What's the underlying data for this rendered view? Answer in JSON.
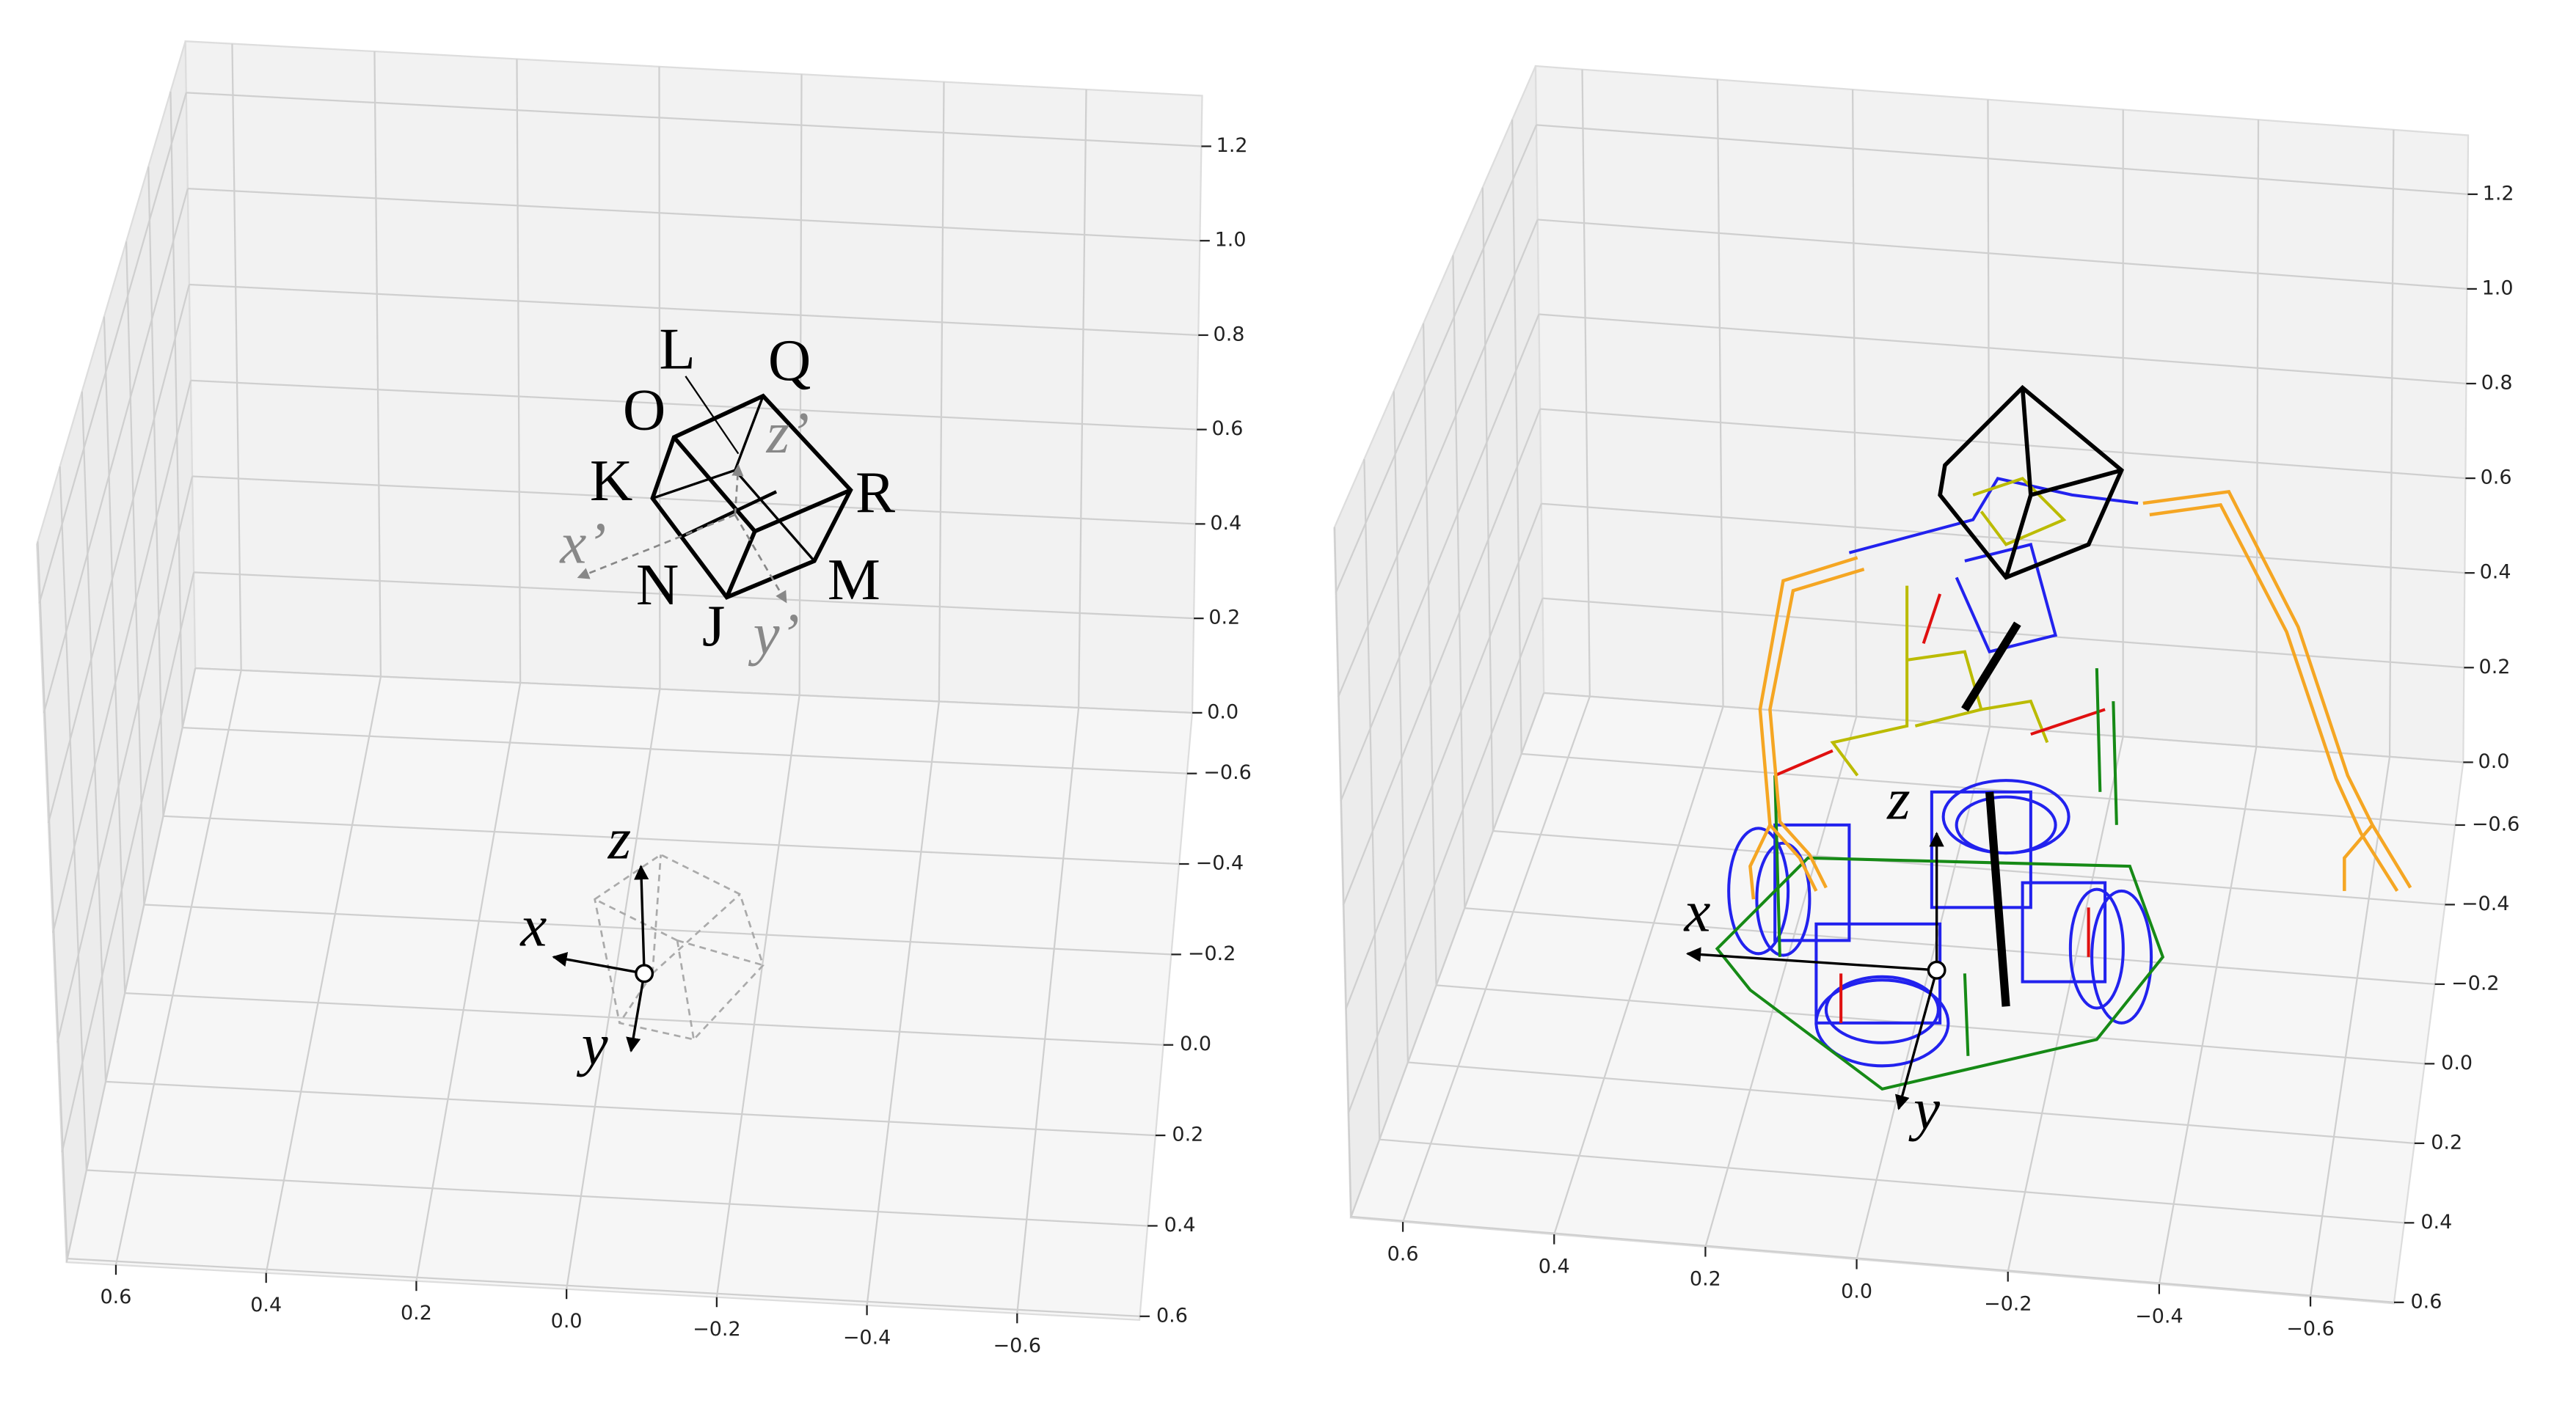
{
  "panels": [
    {
      "z_ticks": [
        "0.0",
        "0.2",
        "0.4",
        "0.6",
        "0.8",
        "1.0",
        "1.2"
      ],
      "y_ticks": [
        "−0.6",
        "−0.4",
        "−0.2",
        "0.0",
        "0.2",
        "0.4",
        "0.6"
      ],
      "x_ticks": [
        "0.6",
        "0.4",
        "0.2",
        "0.0",
        "−0.2",
        "−0.4",
        "−0.6"
      ],
      "points": [
        "L",
        "Q",
        "O",
        "K",
        "R",
        "N",
        "M",
        "J"
      ],
      "frame_axes": [
        "x’",
        "y’",
        "z’"
      ],
      "base_axes": [
        "x",
        "y",
        "z"
      ]
    },
    {
      "z_ticks": [
        "0.0",
        "0.2",
        "0.4",
        "0.6",
        "0.8",
        "1.0",
        "1.2"
      ],
      "y_ticks": [
        "−0.6",
        "−0.4",
        "−0.2",
        "0.0",
        "0.2",
        "0.4",
        "0.6"
      ],
      "x_ticks": [
        "0.6",
        "0.4",
        "0.2",
        "0.0",
        "−0.2",
        "−0.4",
        "−0.6"
      ],
      "base_axes": [
        "x",
        "y",
        "z"
      ]
    }
  ]
}
